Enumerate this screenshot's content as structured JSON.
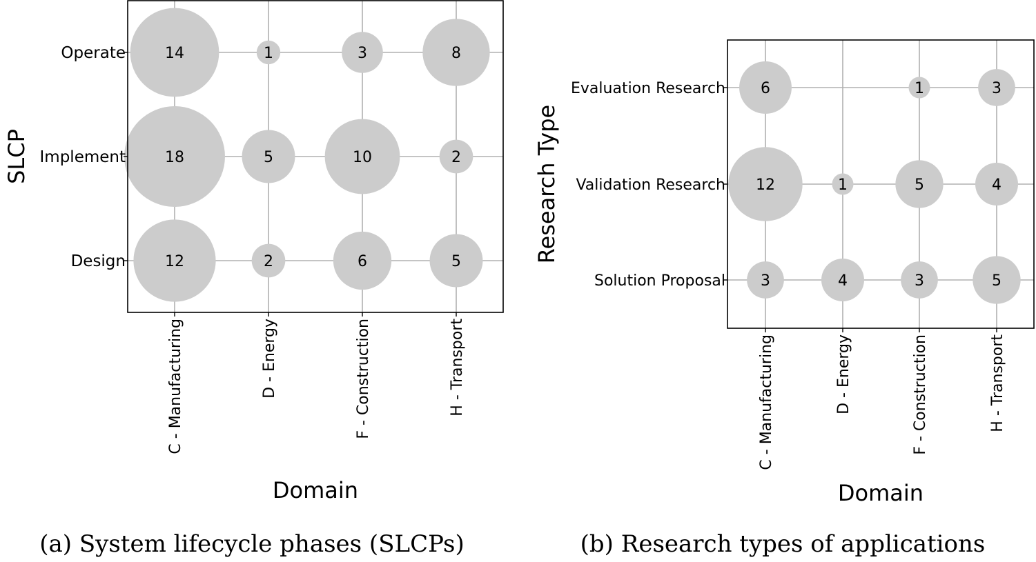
{
  "chart_data": [
    {
      "type": "scatter",
      "subtype": "bubble",
      "xlabel": "Domain",
      "ylabel": "SLCP",
      "x_categories": [
        "C - Manufacturing",
        "D - Energy",
        "F - Construction",
        "H - Transport"
      ],
      "y_categories": [
        "Design",
        "Implement",
        "Operate"
      ],
      "points": [
        {
          "x": "C - Manufacturing",
          "y": "Operate",
          "value": 14
        },
        {
          "x": "D - Energy",
          "y": "Operate",
          "value": 1
        },
        {
          "x": "F - Construction",
          "y": "Operate",
          "value": 3
        },
        {
          "x": "H - Transport",
          "y": "Operate",
          "value": 8
        },
        {
          "x": "C - Manufacturing",
          "y": "Implement",
          "value": 18
        },
        {
          "x": "D - Energy",
          "y": "Implement",
          "value": 5
        },
        {
          "x": "F - Construction",
          "y": "Implement",
          "value": 10
        },
        {
          "x": "H - Transport",
          "y": "Implement",
          "value": 2
        },
        {
          "x": "C - Manufacturing",
          "y": "Design",
          "value": 12
        },
        {
          "x": "D - Energy",
          "y": "Design",
          "value": 2
        },
        {
          "x": "F - Construction",
          "y": "Design",
          "value": 6
        },
        {
          "x": "H - Transport",
          "y": "Design",
          "value": 5
        }
      ],
      "grid": true,
      "bubble_color": "#cccccc",
      "caption": "(a) System lifecycle phases (SLCPs)"
    },
    {
      "type": "scatter",
      "subtype": "bubble",
      "xlabel": "Domain",
      "ylabel": "Research Type",
      "x_categories": [
        "C - Manufacturing",
        "D - Energy",
        "F - Construction",
        "H - Transport"
      ],
      "y_categories": [
        "Solution Proposal",
        "Validation Research",
        "Evaluation Research"
      ],
      "points": [
        {
          "x": "C - Manufacturing",
          "y": "Evaluation Research",
          "value": 6
        },
        {
          "x": "F - Construction",
          "y": "Evaluation Research",
          "value": 1
        },
        {
          "x": "H - Transport",
          "y": "Evaluation Research",
          "value": 3
        },
        {
          "x": "C - Manufacturing",
          "y": "Validation Research",
          "value": 12
        },
        {
          "x": "D - Energy",
          "y": "Validation Research",
          "value": 1
        },
        {
          "x": "F - Construction",
          "y": "Validation Research",
          "value": 5
        },
        {
          "x": "H - Transport",
          "y": "Validation Research",
          "value": 4
        },
        {
          "x": "C - Manufacturing",
          "y": "Solution Proposal",
          "value": 3
        },
        {
          "x": "D - Energy",
          "y": "Solution Proposal",
          "value": 4
        },
        {
          "x": "F - Construction",
          "y": "Solution Proposal",
          "value": 3
        },
        {
          "x": "H - Transport",
          "y": "Solution Proposal",
          "value": 5
        }
      ],
      "grid": true,
      "bubble_color": "#cccccc",
      "caption": "(b) Research types of applications"
    }
  ]
}
